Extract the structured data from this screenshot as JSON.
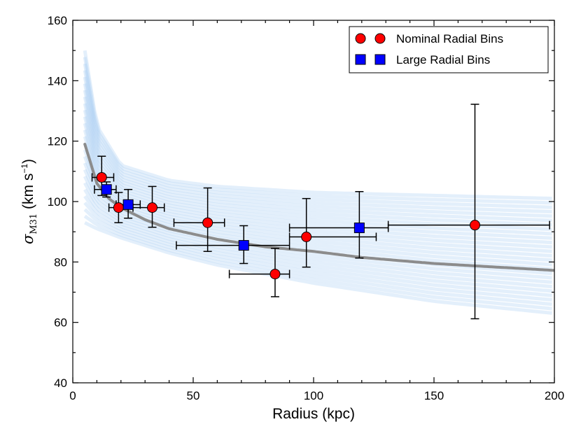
{
  "chart_data": {
    "type": "scatter",
    "xlabel": "Radius (kpc)",
    "ylabel": {
      "symbol": "σ",
      "subscript": "M31",
      "units_open": " (km s",
      "units_exp": "−1",
      "units_close": ")"
    },
    "xlim": [
      0,
      200
    ],
    "ylim": [
      40,
      160
    ],
    "xticks": [
      0,
      50,
      100,
      150,
      200
    ],
    "yticks": [
      40,
      60,
      80,
      100,
      120,
      140,
      160
    ],
    "grid": false,
    "legend_position": "top-right",
    "band": {
      "color": "#a9cdf2",
      "upper": [
        [
          5,
          150
        ],
        [
          10,
          125
        ],
        [
          20,
          112
        ],
        [
          40,
          107
        ],
        [
          60,
          105
        ],
        [
          100,
          103
        ],
        [
          150,
          102
        ],
        [
          200,
          101
        ]
      ],
      "lower": [
        [
          5,
          93
        ],
        [
          10,
          91
        ],
        [
          20,
          88
        ],
        [
          40,
          83
        ],
        [
          60,
          79
        ],
        [
          100,
          73
        ],
        [
          150,
          67
        ],
        [
          200,
          63
        ]
      ]
    },
    "fit_curve": {
      "color": "#8c8c8c",
      "points": [
        [
          5,
          119
        ],
        [
          10,
          106
        ],
        [
          15,
          101
        ],
        [
          20,
          98
        ],
        [
          30,
          94
        ],
        [
          40,
          91
        ],
        [
          60,
          87.5
        ],
        [
          80,
          85
        ],
        [
          100,
          83.5
        ],
        [
          120,
          81.5
        ],
        [
          150,
          79.5
        ],
        [
          200,
          77.2
        ]
      ]
    },
    "series": [
      {
        "name": "Nominal Radial Bins",
        "marker": "circle",
        "color": "#ff0000",
        "points": [
          {
            "x": 12,
            "y": 108,
            "xerr": [
              4,
              5
            ],
            "yerr": [
              6,
              7
            ]
          },
          {
            "x": 19,
            "y": 98,
            "xerr": [
              4,
              4
            ],
            "yerr": [
              5,
              5
            ]
          },
          {
            "x": 33,
            "y": 98,
            "xerr": [
              8,
              5
            ],
            "yerr": [
              6.5,
              7
            ]
          },
          {
            "x": 56,
            "y": 93,
            "xerr": [
              14,
              7
            ],
            "yerr": [
              9.5,
              11.5
            ]
          },
          {
            "x": 84,
            "y": 76,
            "xerr": [
              19,
              6
            ],
            "yerr": [
              7.5,
              8.5
            ]
          },
          {
            "x": 97,
            "y": 88.3,
            "xerr": [
              7,
              29
            ],
            "yerr": [
              10,
              12.7
            ]
          },
          {
            "x": 167,
            "y": 92.2,
            "xerr": [
              36,
              31
            ],
            "yerr": [
              31,
              40
            ]
          }
        ]
      },
      {
        "name": "Large Radial Bins",
        "marker": "square",
        "color": "#0000ff",
        "points": [
          {
            "x": 14,
            "y": 104,
            "xerr": [
              5,
              4
            ],
            "yerr": [
              2.5,
              2.5
            ]
          },
          {
            "x": 23,
            "y": 99,
            "xerr": [
              5,
              5
            ],
            "yerr": [
              4.5,
              5
            ]
          },
          {
            "x": 71,
            "y": 85.5,
            "xerr": [
              28,
              19
            ],
            "yerr": [
              6,
              6.5
            ]
          },
          {
            "x": 119,
            "y": 91.3,
            "xerr": [
              29,
              12
            ],
            "yerr": [
              10,
              12
            ]
          }
        ]
      }
    ]
  }
}
